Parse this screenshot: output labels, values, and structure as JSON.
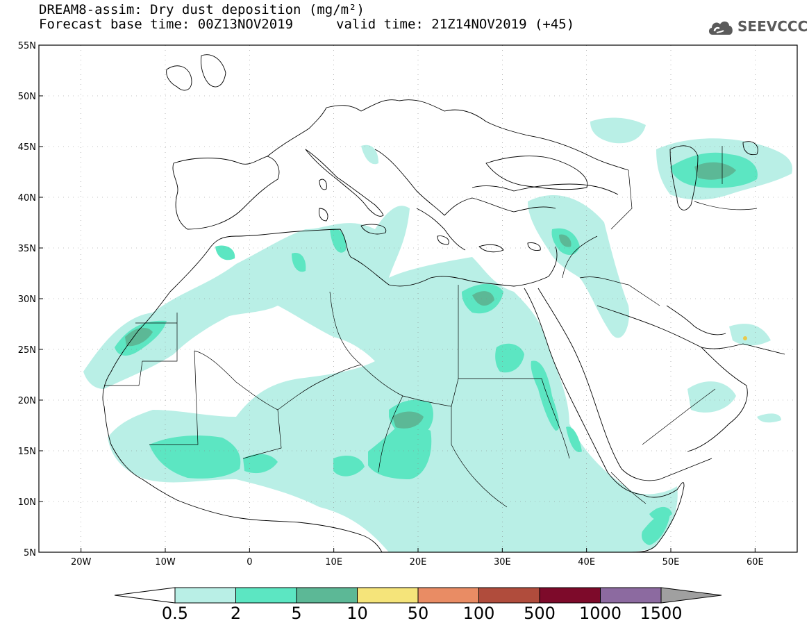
{
  "title": {
    "line1": "DREAM8-assim: Dry dust deposition (mg/m²)",
    "line2": "Forecast base time: 00Z13NOV2019",
    "valid": "valid time: 21Z14NOV2019 (+45)"
  },
  "logo": {
    "text": "SEEVCCC",
    "icon": "cloud-icon"
  },
  "map": {
    "lat_labels": [
      "55N",
      "50N",
      "45N",
      "40N",
      "35N",
      "30N",
      "25N",
      "20N",
      "15N",
      "10N",
      "5N"
    ],
    "lat_values": [
      55,
      50,
      45,
      40,
      35,
      30,
      25,
      20,
      15,
      10,
      5
    ],
    "lon_labels": [
      "20W",
      "10W",
      "0",
      "10E",
      "20E",
      "30E",
      "40E",
      "50E",
      "60E"
    ],
    "lon_values": [
      -20,
      -10,
      0,
      10,
      20,
      30,
      40,
      50,
      60
    ],
    "lon_range": [
      -25,
      65
    ],
    "lat_range": [
      5,
      55
    ]
  },
  "colorbar": {
    "labels": [
      "0.5",
      "2",
      "5",
      "10",
      "50",
      "100",
      "500",
      "1000",
      "1500"
    ],
    "colors": [
      "#ffffff",
      "#b9efe6",
      "#5ce6c2",
      "#5cb896",
      "#f5e47a",
      "#e98c64",
      "#b04c3c",
      "#7d0a2a",
      "#8c6aa0",
      "#a0a0a0"
    ]
  },
  "dust_colors": {
    "light": "#b9efe6",
    "medium": "#5ce6c2",
    "dark": "#5cb896",
    "darkest": "#4f9474"
  }
}
